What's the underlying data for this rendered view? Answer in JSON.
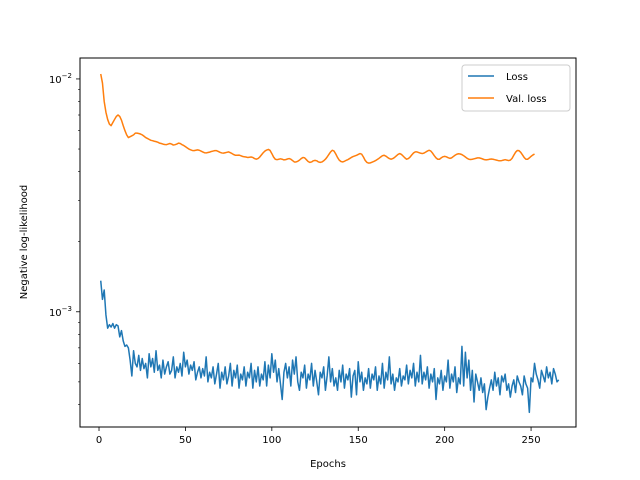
{
  "chart_data": {
    "type": "line",
    "xlabel": "Epochs",
    "ylabel": "Negative log-likelihood",
    "xlim": [
      -11,
      276
    ],
    "ylim": [
      0.00032,
      0.0123
    ],
    "yscale": "log",
    "grid": false,
    "legend": "top-right",
    "x_ticks": [
      0,
      50,
      100,
      150,
      200,
      250
    ],
    "y_ticks": [
      {
        "value": 0.001,
        "base": "10",
        "exp": "−3"
      },
      {
        "value": 0.01,
        "base": "10",
        "exp": "−2"
      }
    ],
    "series": [
      {
        "name": "Loss",
        "color": "#1f77b4",
        "x_start": 1,
        "x_step": 1,
        "values": [
          0.00136,
          0.00113,
          0.00124,
          0.00097,
          0.00085,
          0.00088,
          0.00086,
          0.00089,
          0.00085,
          0.00088,
          0.00087,
          0.00078,
          0.00083,
          0.00075,
          0.00071,
          0.00072,
          0.0007,
          0.00062,
          0.00053,
          0.00068,
          0.0006,
          0.00058,
          0.00065,
          0.00056,
          0.00063,
          0.00057,
          0.0006,
          0.00052,
          0.00066,
          0.00058,
          0.00063,
          0.00055,
          0.00068,
          0.00056,
          0.00059,
          0.00052,
          0.00062,
          0.00054,
          0.00058,
          0.00061,
          0.00054,
          0.00056,
          0.00064,
          0.00052,
          0.00058,
          0.00055,
          0.0006,
          0.00053,
          0.00067,
          0.00058,
          0.00062,
          0.00054,
          0.00059,
          0.00056,
          0.00061,
          0.00051,
          0.00055,
          0.00058,
          0.00052,
          0.00057,
          0.00053,
          0.00064,
          0.0005,
          0.00055,
          0.00052,
          0.00058,
          0.00049,
          0.00054,
          0.0006,
          0.00047,
          0.00055,
          0.00051,
          0.00058,
          0.00049,
          0.00053,
          0.0006,
          0.00048,
          0.00056,
          0.00052,
          0.00059,
          0.00047,
          0.00054,
          0.00051,
          0.00058,
          0.00048,
          0.00055,
          0.00052,
          0.0006,
          0.00047,
          0.00056,
          0.0005,
          0.00058,
          0.00048,
          0.00054,
          0.00051,
          0.00061,
          0.00048,
          0.00059,
          0.00052,
          0.00066,
          0.00055,
          0.00062,
          0.0005,
          0.00057,
          0.00049,
          0.00042,
          0.00055,
          0.0006,
          0.00052,
          0.00058,
          0.00048,
          0.00062,
          0.00054,
          0.00064,
          0.0005,
          0.00046,
          0.00055,
          0.00052,
          0.00059,
          0.00047,
          0.00054,
          0.00051,
          0.0006,
          0.00048,
          0.00056,
          0.0005,
          0.00044,
          0.00055,
          0.00052,
          0.00058,
          0.00046,
          0.00053,
          0.00064,
          0.0005,
          0.00057,
          0.00048,
          0.00052,
          0.00046,
          0.00056,
          0.0005,
          0.00059,
          0.00047,
          0.00054,
          0.00051,
          0.00057,
          0.00043,
          0.00053,
          0.00056,
          0.00044,
          0.00061,
          0.0005,
          0.00055,
          0.00046,
          0.00052,
          0.00049,
          0.00057,
          0.00047,
          0.00054,
          0.00051,
          0.00058,
          0.00046,
          0.00053,
          0.00049,
          0.0006,
          0.00047,
          0.00055,
          0.00051,
          0.00064,
          0.00049,
          0.00054,
          0.00046,
          0.00052,
          0.0005,
          0.00057,
          0.00048,
          0.00053,
          0.00051,
          0.00059,
          0.00049,
          0.00056,
          0.00052,
          0.0006,
          0.00048,
          0.00055,
          0.0005,
          0.00065,
          0.00049,
          0.00055,
          0.00051,
          0.00058,
          0.00047,
          0.00054,
          0.0005,
          0.00057,
          0.00042,
          0.00052,
          0.00049,
          0.00056,
          0.00046,
          0.00053,
          0.0005,
          0.00062,
          0.00047,
          0.00054,
          0.0005,
          0.00058,
          0.00045,
          0.00052,
          0.00049,
          0.00071,
          0.00048,
          0.00067,
          0.00052,
          0.00062,
          0.00046,
          0.00056,
          0.00041,
          0.00054,
          0.0005,
          0.00046,
          0.00052,
          0.00045,
          0.00049,
          0.00038,
          0.00043,
          0.00047,
          0.00051,
          0.00046,
          0.00055,
          0.00048,
          0.00052,
          0.00044,
          0.00053,
          0.0005,
          0.00054,
          0.00046,
          0.00049,
          0.00043,
          0.00048,
          0.00051,
          0.00045,
          0.00053,
          0.0005,
          0.00048,
          0.00044,
          0.00053,
          0.00049,
          0.00047,
          0.00037,
          0.00052,
          0.0005,
          0.0006,
          0.00054,
          0.00051,
          0.00047,
          0.00056,
          0.00053,
          0.0005,
          0.00058,
          0.00052,
          0.00055,
          0.00049,
          0.00057,
          0.00054,
          0.0005,
          0.00051
        ]
      },
      {
        "name": "Val. loss",
        "color": "#ff7f0e",
        "x_start": 1,
        "x_step": 1,
        "values": [
          0.0105,
          0.0096,
          0.008,
          0.0072,
          0.0067,
          0.0064,
          0.0063,
          0.0065,
          0.0067,
          0.0069,
          0.007,
          0.0069,
          0.00665,
          0.0063,
          0.006,
          0.00575,
          0.0056,
          0.00565,
          0.0057,
          0.00575,
          0.00585,
          0.00585,
          0.00583,
          0.0058,
          0.00575,
          0.00568,
          0.0056,
          0.00555,
          0.0055,
          0.00545,
          0.00543,
          0.0054,
          0.00538,
          0.00535,
          0.0053,
          0.00528,
          0.00525,
          0.00523,
          0.00522,
          0.00525,
          0.00528,
          0.00525,
          0.0052,
          0.00522,
          0.00525,
          0.0053,
          0.00528,
          0.00522,
          0.00518,
          0.00512,
          0.00506,
          0.005,
          0.00496,
          0.00493,
          0.00492,
          0.00494,
          0.00496,
          0.00494,
          0.0049,
          0.00486,
          0.00482,
          0.00481,
          0.00483,
          0.00485,
          0.00488,
          0.0049,
          0.00492,
          0.00492,
          0.00488,
          0.00484,
          0.00481,
          0.0048,
          0.00482,
          0.00484,
          0.00486,
          0.00482,
          0.00478,
          0.00473,
          0.0047,
          0.0047,
          0.00471,
          0.00468,
          0.00465,
          0.00463,
          0.00462,
          0.0046,
          0.00461,
          0.00462,
          0.0046,
          0.00455,
          0.00452,
          0.00455,
          0.00462,
          0.00472,
          0.00482,
          0.0049,
          0.00495,
          0.00498,
          0.00493,
          0.00478,
          0.00462,
          0.00452,
          0.0045,
          0.00452,
          0.00454,
          0.00452,
          0.00449,
          0.0045,
          0.00453,
          0.00455,
          0.00452,
          0.00446,
          0.0044,
          0.0044,
          0.00443,
          0.00448,
          0.00455,
          0.0046,
          0.00458,
          0.0045,
          0.00442,
          0.00438,
          0.0044,
          0.00445,
          0.00447,
          0.00445,
          0.0044,
          0.00438,
          0.0044,
          0.00445,
          0.00452,
          0.00462,
          0.00474,
          0.00486,
          0.00494,
          0.0049,
          0.00476,
          0.0046,
          0.00448,
          0.00442,
          0.0044,
          0.00443,
          0.00447,
          0.0045,
          0.00455,
          0.0046,
          0.00464,
          0.00467,
          0.0047,
          0.00474,
          0.00478,
          0.00475,
          0.00462,
          0.00447,
          0.00438,
          0.00435,
          0.00436,
          0.00439,
          0.00442,
          0.00446,
          0.00451,
          0.00456,
          0.00462,
          0.00468,
          0.0047,
          0.00466,
          0.0046,
          0.00455,
          0.00452,
          0.00455,
          0.0046,
          0.00467,
          0.00474,
          0.00478,
          0.00474,
          0.00466,
          0.00458,
          0.00452,
          0.00455,
          0.00462,
          0.00472,
          0.00481,
          0.00486,
          0.00486,
          0.00483,
          0.0048,
          0.00478,
          0.0048,
          0.00485,
          0.0049,
          0.00494,
          0.0049,
          0.0048,
          0.00468,
          0.00458,
          0.00452,
          0.00452,
          0.00458,
          0.00463,
          0.00465,
          0.00463,
          0.00459,
          0.00456,
          0.00458,
          0.00464,
          0.0047,
          0.00475,
          0.00477,
          0.00476,
          0.00473,
          0.00468,
          0.00462,
          0.00456,
          0.00452,
          0.00451,
          0.00452,
          0.00454,
          0.00456,
          0.00458,
          0.00458,
          0.00456,
          0.00453,
          0.0045,
          0.00449,
          0.0045,
          0.00452,
          0.00453,
          0.00452,
          0.0045,
          0.00448,
          0.00446,
          0.00445,
          0.00446,
          0.00448,
          0.0045,
          0.00448,
          0.00446,
          0.00448,
          0.00456,
          0.0047,
          0.00484,
          0.00493,
          0.00492,
          0.00484,
          0.00472,
          0.0046,
          0.00452,
          0.00452,
          0.00458,
          0.00465,
          0.00471,
          0.00476
        ]
      }
    ]
  }
}
